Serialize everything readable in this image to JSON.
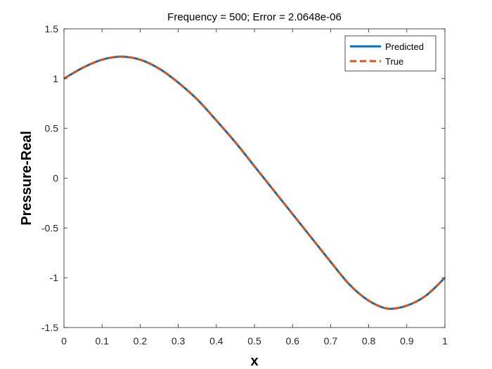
{
  "chart_data": {
    "type": "line",
    "title": "Frequency = 500; Error = 2.0648e-06",
    "xlabel": "x",
    "ylabel": "Pressure-Real",
    "xlim": [
      0,
      1
    ],
    "ylim": [
      -1.5,
      1.5
    ],
    "xticks": [
      0,
      0.1,
      0.2,
      0.3,
      0.4,
      0.5,
      0.6,
      0.7,
      0.8,
      0.9,
      1
    ],
    "xtick_labels": [
      "0",
      "0.1",
      "0.2",
      "0.3",
      "0.4",
      "0.5",
      "0.6",
      "0.7",
      "0.8",
      "0.9",
      "1"
    ],
    "yticks": [
      -1.5,
      -1,
      -0.5,
      0,
      0.5,
      1,
      1.5
    ],
    "ytick_labels": [
      "-1.5",
      "-1",
      "-0.5",
      "0",
      "0.5",
      "1",
      "1.5"
    ],
    "grid": false,
    "legend_position": "top-right",
    "series": [
      {
        "name": "Predicted",
        "style": "solid",
        "color": "#0072BD",
        "x": [
          0,
          0.05,
          0.1,
          0.15,
          0.2,
          0.25,
          0.3,
          0.35,
          0.4,
          0.45,
          0.5,
          0.55,
          0.6,
          0.65,
          0.7,
          0.75,
          0.8,
          0.85,
          0.9,
          0.95,
          1
        ],
        "y": [
          1.0,
          1.11,
          1.19,
          1.22,
          1.19,
          1.1,
          0.96,
          0.79,
          0.58,
          0.36,
          0.12,
          -0.12,
          -0.36,
          -0.6,
          -0.84,
          -1.07,
          -1.23,
          -1.31,
          -1.28,
          -1.18,
          -1.0
        ]
      },
      {
        "name": "True",
        "style": "dashed",
        "color": "#D95319",
        "x": [
          0,
          0.05,
          0.1,
          0.15,
          0.2,
          0.25,
          0.3,
          0.35,
          0.4,
          0.45,
          0.5,
          0.55,
          0.6,
          0.65,
          0.7,
          0.75,
          0.8,
          0.85,
          0.9,
          0.95,
          1
        ],
        "y": [
          1.0,
          1.11,
          1.19,
          1.22,
          1.19,
          1.1,
          0.96,
          0.79,
          0.58,
          0.36,
          0.12,
          -0.12,
          -0.36,
          -0.6,
          -0.84,
          -1.07,
          -1.23,
          -1.31,
          -1.28,
          -1.18,
          -1.0
        ]
      }
    ]
  }
}
